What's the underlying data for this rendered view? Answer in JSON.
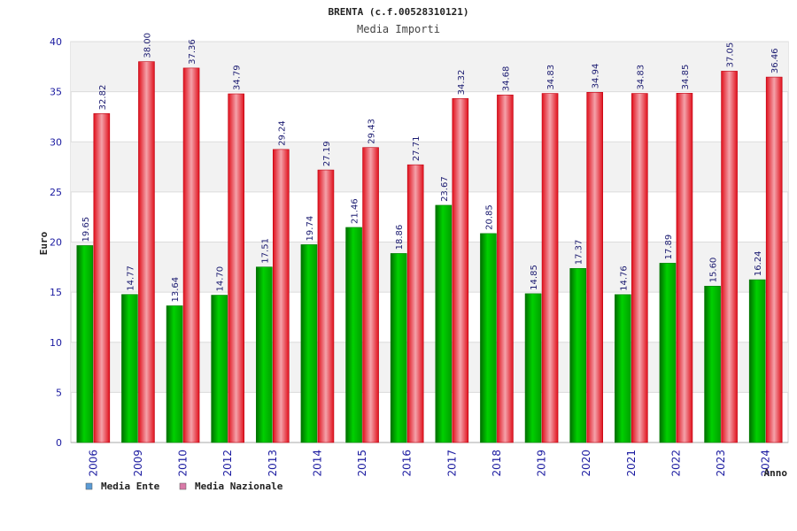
{
  "chart_data": {
    "type": "bar",
    "title": "BRENTA (c.f.00528310121)",
    "subtitle": "Media Importi",
    "xlabel": "Anno",
    "ylabel": "Euro",
    "ylim": [
      0,
      40
    ],
    "yticks": [
      "0",
      "5",
      "10",
      "15",
      "20",
      "25",
      "30",
      "35",
      "40"
    ],
    "grid": "horizontal bands",
    "legend_position": "bottom-left",
    "categories": [
      "2006",
      "2009",
      "2010",
      "2012",
      "2013",
      "2014",
      "2015",
      "2016",
      "2017",
      "2018",
      "2019",
      "2020",
      "2021",
      "2022",
      "2023",
      "2024"
    ],
    "series": [
      {
        "name": "Media Ente",
        "color": "#00b000",
        "legend_color": "#5b9bd5",
        "values": [
          19.65,
          14.77,
          13.64,
          14.7,
          17.51,
          19.74,
          21.46,
          18.86,
          23.67,
          20.85,
          14.85,
          17.37,
          14.76,
          17.89,
          15.6,
          16.24
        ],
        "labels": [
          "19.65",
          "14.77",
          "13.64",
          "14.70",
          "17.51",
          "19.74",
          "21.46",
          "18.86",
          "23.67",
          "20.85",
          "14.85",
          "17.37",
          "14.76",
          "17.89",
          "15.60",
          "16.24"
        ]
      },
      {
        "name": "Media Nazionale",
        "color": "#e8101e",
        "legend_color": "#d97aa8",
        "values": [
          32.82,
          38.0,
          37.36,
          34.79,
          29.24,
          27.19,
          29.43,
          27.71,
          34.32,
          34.68,
          34.83,
          34.94,
          34.83,
          34.85,
          37.05,
          36.46
        ],
        "labels": [
          "32.82",
          "38.00",
          "37.36",
          "34.79",
          "29.24",
          "27.19",
          "29.43",
          "27.71",
          "34.32",
          "34.68",
          "34.83",
          "34.94",
          "34.83",
          "34.85",
          "37.05",
          "36.46"
        ]
      }
    ]
  }
}
